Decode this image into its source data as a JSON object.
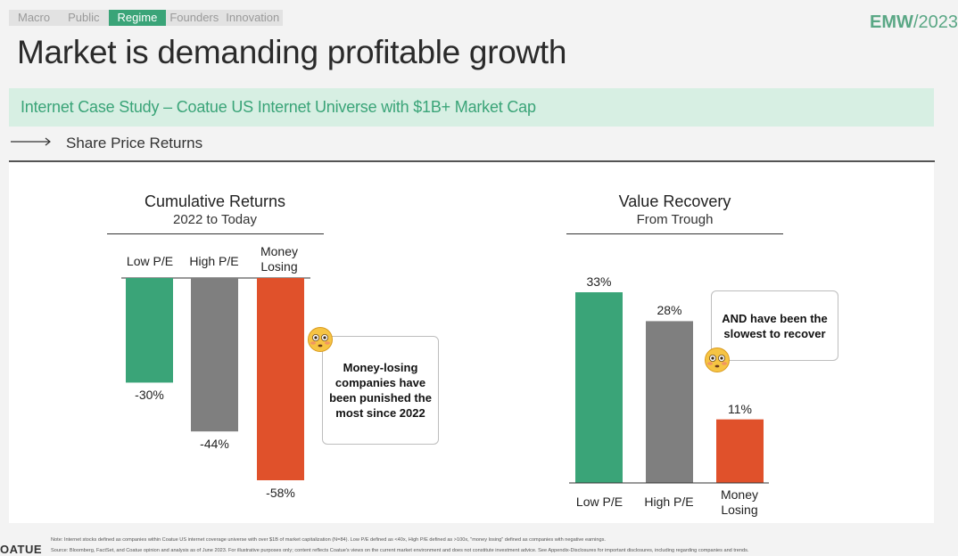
{
  "tabs": [
    "Macro",
    "Public",
    "Regime",
    "Founders",
    "Innovation"
  ],
  "active_tab": "Regime",
  "brand": {
    "bold": "EMW",
    "rest": "/2023"
  },
  "title": "Market is demanding profitable growth",
  "banner": "Internet Case Study – Coatue US Internet Universe with $1B+ Market Cap",
  "section_label": "Share Price Returns",
  "colors": {
    "green": "#3aa478",
    "gray": "#7f7f7f",
    "orange": "#e0512b",
    "banner": "#d7efe3"
  },
  "chart_data": [
    {
      "type": "bar",
      "title": "Cumulative Returns",
      "subtitle": "2022 to Today",
      "categories": [
        "Low P/E",
        "High P/E",
        "Money Losing"
      ],
      "values": [
        -30,
        -44,
        -58
      ],
      "value_labels": [
        "-30%",
        "-44%",
        "-58%"
      ],
      "ylim": [
        -58,
        0
      ],
      "legend": "none"
    },
    {
      "type": "bar",
      "title": "Value Recovery",
      "subtitle": "From Trough",
      "categories": [
        "Low P/E",
        "High P/E",
        "Money Losing"
      ],
      "values": [
        33,
        28,
        11
      ],
      "value_labels": [
        "33%",
        "28%",
        "11%"
      ],
      "ylim": [
        0,
        33
      ],
      "legend": "none"
    }
  ],
  "callouts": [
    {
      "text": "Money-losing companies have been punished the most since 2022",
      "icon": "flushed-face-icon"
    },
    {
      "text": "AND have been the slowest to recover",
      "icon": "flushed-face-icon"
    }
  ],
  "footer": {
    "logo": "OATUE",
    "note": "Note: Internet stocks defined as companies within Coatue US internet coverage universe with over $1B of market capitalization (N=84). Low P/E defined as <40x, High P/E defined as >100x, \"money losing\" defined as companies with negative earnings.",
    "source": "Source: Bloomberg, FactSet, and Coatue opinion and analysis as of June 2023. For illustrative purposes only; content reflects Coatue's views on the current market environment and does not constitute investment advice. See Appendix-Disclosures for important disclosures, including regarding companies and trends."
  }
}
